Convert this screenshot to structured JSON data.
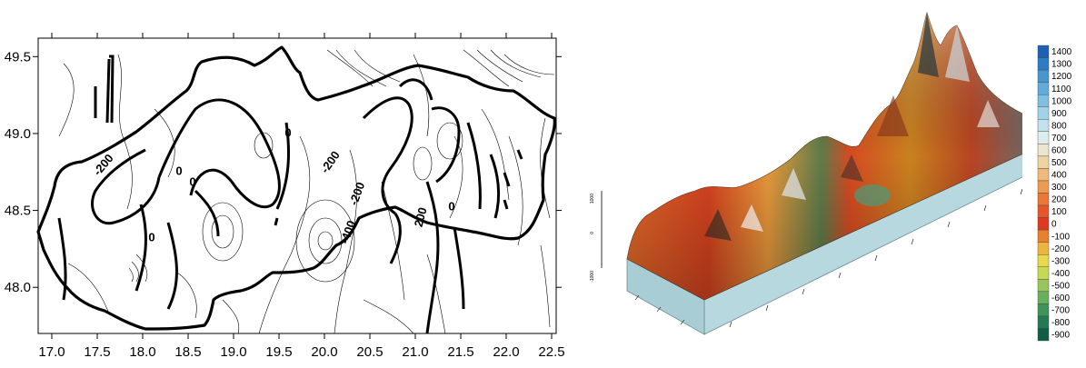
{
  "contour_map": {
    "x_ticks": [
      "17.0",
      "17.5",
      "18.0",
      "18.5",
      "19.0",
      "19.5",
      "20.0",
      "20.5",
      "21.0",
      "21.5",
      "22.0",
      "22.5"
    ],
    "y_ticks": [
      "49.5",
      "49.0",
      "48.5",
      "48.0"
    ],
    "xlim": [
      16.85,
      22.55
    ],
    "ylim": [
      47.7,
      49.62
    ],
    "contour_labels": [
      {
        "text": "-200",
        "lon": 17.6,
        "lat": 48.78,
        "rotate": -50
      },
      {
        "text": "-200",
        "lon": 20.1,
        "lat": 48.8,
        "rotate": -55
      },
      {
        "text": "-200",
        "lon": 20.4,
        "lat": 48.6,
        "rotate": -70
      },
      {
        "text": "-400",
        "lon": 20.3,
        "lat": 48.35,
        "rotate": -70
      },
      {
        "text": "200",
        "lon": 21.1,
        "lat": 48.45,
        "rotate": -75
      },
      {
        "text": "0",
        "lon": 19.6,
        "lat": 48.98,
        "rotate": 0
      },
      {
        "text": "0",
        "lon": 18.55,
        "lat": 48.66,
        "rotate": 0
      },
      {
        "text": "0",
        "lon": 18.1,
        "lat": 48.3,
        "rotate": 0
      },
      {
        "text": "0",
        "lon": 18.4,
        "lat": 48.73,
        "rotate": 0
      },
      {
        "text": "0",
        "lon": 21.4,
        "lat": 48.5,
        "rotate": 0
      }
    ]
  },
  "surface": {
    "axis_marks": [
      "1000",
      "0",
      "-1000"
    ]
  },
  "colorbar": {
    "labels": [
      "1400",
      "1300",
      "1200",
      "1100",
      "1000",
      "900",
      "800",
      "700",
      "600",
      "500",
      "400",
      "300",
      "200",
      "100",
      "0",
      "-100",
      "-200",
      "-300",
      "-400",
      "-500",
      "-600",
      "-700",
      "-800",
      "-900"
    ],
    "colors": [
      "#1f5fb4",
      "#2f7cc6",
      "#4696cf",
      "#61acd8",
      "#7fc0e0",
      "#a0d2e8",
      "#c2e2ee",
      "#ddecec",
      "#ece6cf",
      "#f0d3a3",
      "#efb979",
      "#ee9a52",
      "#ec7737",
      "#e8552a",
      "#dc3b22",
      "#e8812e",
      "#eeb53c",
      "#e8d84a",
      "#c7d852",
      "#97c75c",
      "#69b05d",
      "#3f945a",
      "#217a52",
      "#0f5f46"
    ]
  }
}
